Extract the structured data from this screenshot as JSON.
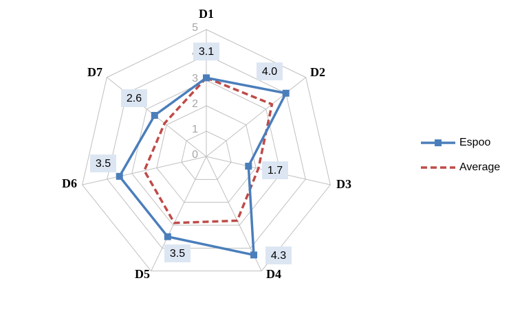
{
  "chart_data": {
    "type": "radar",
    "categories": [
      "D1",
      "D2",
      "D3",
      "D4",
      "D5",
      "D6",
      "D7"
    ],
    "rlim": [
      0,
      5
    ],
    "rticks": [
      0,
      1,
      2,
      3,
      4,
      5
    ],
    "series": [
      {
        "name": "Espoo",
        "color": "#4a7ebb",
        "values": [
          3.1,
          4.0,
          1.7,
          4.3,
          3.5,
          3.5,
          2.6
        ],
        "value_labels": [
          "3.1",
          "4.0",
          "1.7",
          "4.3",
          "3.5",
          "3.5",
          "2.6"
        ]
      },
      {
        "name": "Average",
        "color": "#be4b48",
        "values": [
          3.1,
          3.3,
          2.1,
          2.8,
          2.9,
          2.5,
          2.1
        ]
      }
    ],
    "legend": "right"
  }
}
